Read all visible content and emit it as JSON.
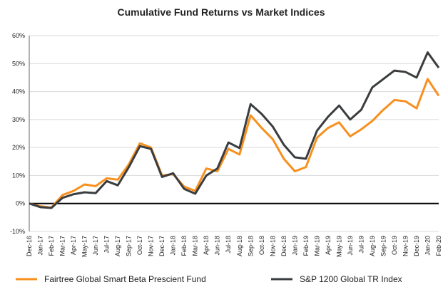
{
  "chart_data": {
    "type": "line",
    "title": "Cumulative Fund Returns vs Market Indices",
    "categories": [
      "Dec-16",
      "Jan-17",
      "Feb-17",
      "Mar-17",
      "Apr-17",
      "May-17",
      "Jun-17",
      "Jul-17",
      "Aug-17",
      "Sep-17",
      "Oct-17",
      "Nov-17",
      "Dec-17",
      "Jan-18",
      "Feb-18",
      "Mar-18",
      "Apr-18",
      "Jun-18",
      "Jul-18",
      "Aug-18",
      "Sep-18",
      "Oct-18",
      "Nov-18",
      "Dec-18",
      "Jan-19",
      "Feb-19",
      "Mar-19",
      "Apr-19",
      "May-19",
      "Jun-19",
      "Jul-19",
      "Aug-19",
      "Sep-19",
      "Oct-19",
      "Nov-19",
      "Dec-19",
      "Jan-20",
      "Feb-20"
    ],
    "series": [
      {
        "name": "Fairtree Global Smart Beta Prescient Fund",
        "color": "#f7901e",
        "values": [
          0,
          -1,
          -1.5,
          3,
          4.5,
          6.8,
          6.2,
          9,
          8.5,
          14,
          21.5,
          20,
          10,
          10.5,
          6,
          4.5,
          12.5,
          11.5,
          19.5,
          17.5,
          31.5,
          27,
          23,
          16,
          11.5,
          13,
          23.5,
          27,
          29,
          24,
          26.5,
          29.5,
          33.5,
          37,
          36.5,
          34,
          44.5,
          38.5
        ]
      },
      {
        "name": "S&P 1200 Global TR Index",
        "color": "#3a3d3f",
        "values": [
          0,
          -1.3,
          -1.6,
          2,
          3.3,
          4,
          3.7,
          8,
          6.5,
          13,
          20.5,
          19.5,
          9.5,
          10.8,
          5.2,
          3.5,
          10,
          12.5,
          21.8,
          19.8,
          35.5,
          32,
          27.5,
          21,
          16.5,
          16,
          26,
          31,
          35,
          30,
          33.5,
          41.5,
          44.5,
          47.5,
          47,
          45,
          54,
          48.5
        ]
      }
    ],
    "ylim": [
      -10,
      60
    ],
    "yticks": [
      {
        "value": -10,
        "label": "-10%"
      },
      {
        "value": 0,
        "label": "0%"
      },
      {
        "value": 10,
        "label": "10%"
      },
      {
        "value": 20,
        "label": "20%"
      },
      {
        "value": 30,
        "label": "30%"
      },
      {
        "value": 40,
        "label": "40%"
      },
      {
        "value": 50,
        "label": "50%"
      },
      {
        "value": 60,
        "label": "60%"
      }
    ],
    "grid": true,
    "legend": "bottom"
  }
}
